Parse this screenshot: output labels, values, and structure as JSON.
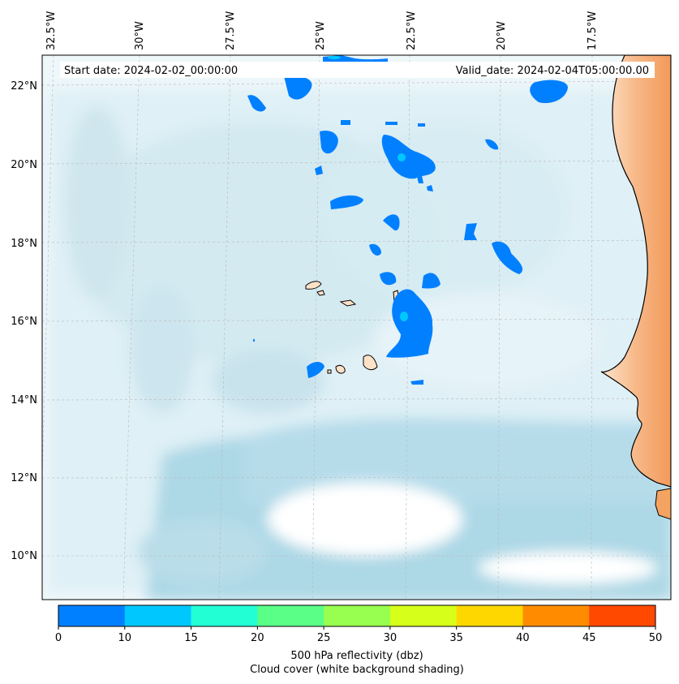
{
  "header": {
    "start_date": "Start date: 2024-02-02_00:00:00",
    "valid_date": "Valid_date: 2024-02-04T05:00:00.00"
  },
  "axes": {
    "lon_labels": [
      "32.5°W",
      "30°W",
      "27.5°W",
      "25°W",
      "22.5°W",
      "20°W",
      "17.5°W"
    ],
    "lat_labels": [
      "22°N",
      "20°N",
      "18°N",
      "16°N",
      "14°N",
      "12°N",
      "10°N"
    ]
  },
  "colorbar": {
    "ticks": [
      "0",
      "10",
      "15",
      "20",
      "25",
      "30",
      "35",
      "40",
      "45",
      "50"
    ],
    "colors": [
      "#0080ff",
      "#00c8ff",
      "#22ffd4",
      "#5aff88",
      "#98ff50",
      "#d6ff1a",
      "#ffd700",
      "#ff8c00",
      "#ff4800"
    ],
    "label": "500 hPa reflectivity (dbz)",
    "sublabel": "Cloud cover (white background shading)"
  },
  "colors": {
    "reflectivity_low": "#0080ff",
    "reflectivity_mid": "#00c8ff",
    "cloud_shading": "#add8e6",
    "land_shading": "#f4a460",
    "island_fill": "#fde2c8"
  }
}
